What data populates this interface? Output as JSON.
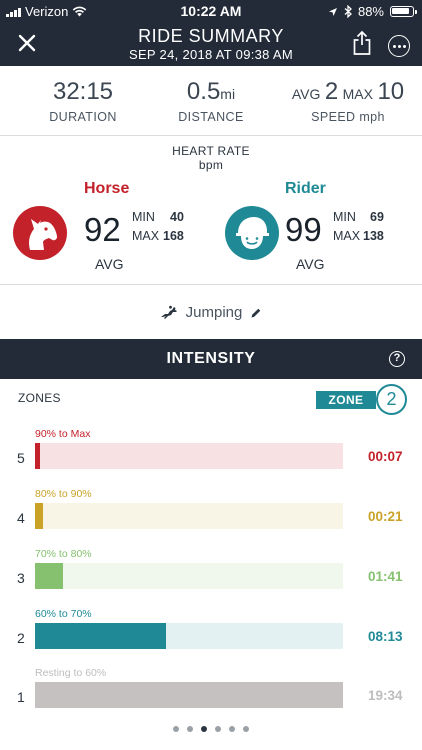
{
  "status_bar": {
    "carrier": "Verizon",
    "time": "10:22 AM",
    "battery": "88%"
  },
  "header": {
    "title": "RIDE SUMMARY",
    "subtitle": "SEP 24, 2018 AT  09:38 AM"
  },
  "stats": {
    "duration": {
      "value": "32:15",
      "label": "DURATION"
    },
    "distance": {
      "value": "0.5",
      "unit": "mi",
      "label": "DISTANCE"
    },
    "speed": {
      "avg_label": "AVG",
      "avg": "2",
      "max_label": "MAX",
      "max": "10",
      "label": "SPEED mph"
    }
  },
  "heart_rate": {
    "title": "HEART RATE",
    "unit": "bpm",
    "horse": {
      "name": "Horse",
      "avg": "92",
      "min_label": "MIN",
      "min": "40",
      "max_label": "MAX",
      "max": "168",
      "avg_label": "AVG",
      "color": "#c4222b"
    },
    "rider": {
      "name": "Rider",
      "avg": "99",
      "min_label": "MIN",
      "min": "69",
      "max_label": "MAX",
      "max": "138",
      "avg_label": "AVG",
      "color": "#1f8a96"
    }
  },
  "activity": {
    "label": "Jumping",
    "icon": "jumping-horse-icon",
    "edit_icon": "pencil-icon"
  },
  "intensity": {
    "title": "INTENSITY",
    "zones_label": "ZONES",
    "zone_badge": {
      "label": "ZONE",
      "value": "2"
    },
    "zones": [
      {
        "number": "5",
        "range": "90% to Max",
        "time": "00:07",
        "fraction": 0.01,
        "color": "#c4222b",
        "track_color": "#f7e1e2"
      },
      {
        "number": "4",
        "range": "80% to 90%",
        "time": "00:21",
        "fraction": 0.025,
        "color": "#c9a227",
        "track_color": "#f8f4e6"
      },
      {
        "number": "3",
        "range": "70% to 80%",
        "time": "01:41",
        "fraction": 0.09,
        "color": "#86c16f",
        "track_color": "#f0f7ec"
      },
      {
        "number": "2",
        "range": "60% to 70%",
        "time": "08:13",
        "fraction": 0.425,
        "color": "#1f8a96",
        "track_color": "#e4f1f3"
      },
      {
        "number": "1",
        "range": "Resting to 60%",
        "time": "19:34",
        "fraction": 1.0,
        "color": "#c5c1c1",
        "track_color": "#eeeeee",
        "text_color": "#bdbdbd"
      }
    ]
  },
  "pager": {
    "pages": 6,
    "current": 3
  }
}
